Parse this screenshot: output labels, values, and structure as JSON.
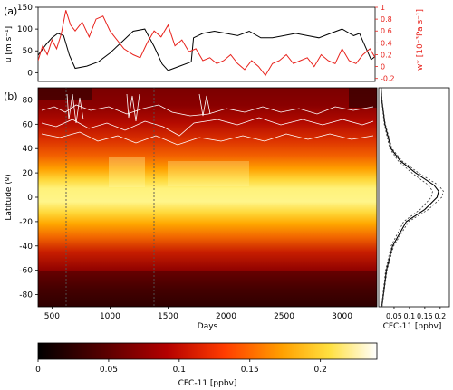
{
  "chart_data": [
    {
      "type": "line",
      "panel_label": "(a)",
      "x_range": [
        380,
        3300
      ],
      "left_axis": {
        "label": "u [m s⁻¹]",
        "ticks": [
          0,
          50,
          100,
          150
        ],
        "ylim": [
          -20,
          150
        ],
        "color": "#000000"
      },
      "right_axis": {
        "label": "w* [10⁻³Pa s⁻¹]",
        "ticks": [
          -0.2,
          0,
          0.2,
          0.4,
          0.6,
          0.8,
          1
        ],
        "tick_labels": [
          "-0.2",
          "0",
          "0.2",
          "0.4",
          "0.6",
          "0.8",
          "1"
        ],
        "ylim": [
          -0.25,
          1.0
        ],
        "color": "#e8221c"
      },
      "series": [
        {
          "color": "#000000",
          "axis": "left",
          "x": [
            380,
            450,
            500,
            550,
            600,
            650,
            700,
            800,
            900,
            1000,
            1100,
            1200,
            1300,
            1380,
            1450,
            1500,
            1600,
            1700,
            1720,
            1800,
            1900,
            2000,
            2100,
            2200,
            2300,
            2400,
            2500,
            2600,
            2700,
            2800,
            2900,
            3000,
            3100,
            3150,
            3200,
            3250,
            3300
          ],
          "values": [
            40,
            65,
            80,
            90,
            85,
            40,
            10,
            15,
            25,
            45,
            70,
            95,
            100,
            60,
            20,
            5,
            15,
            25,
            80,
            90,
            95,
            90,
            85,
            95,
            80,
            80,
            85,
            90,
            85,
            80,
            90,
            100,
            85,
            90,
            60,
            30,
            40
          ]
        },
        {
          "color": "#e8221c",
          "axis": "right",
          "x": [
            380,
            420,
            460,
            500,
            540,
            580,
            620,
            660,
            700,
            760,
            820,
            880,
            940,
            1000,
            1060,
            1120,
            1200,
            1260,
            1320,
            1380,
            1440,
            1500,
            1560,
            1620,
            1680,
            1740,
            1800,
            1860,
            1920,
            1980,
            2040,
            2100,
            2160,
            2220,
            2280,
            2340,
            2400,
            2460,
            2520,
            2580,
            2640,
            2700,
            2760,
            2820,
            2880,
            2940,
            3000,
            3060,
            3120,
            3180,
            3240,
            3300
          ],
          "values": [
            0.1,
            0.35,
            0.2,
            0.45,
            0.3,
            0.55,
            0.95,
            0.7,
            0.6,
            0.75,
            0.5,
            0.8,
            0.85,
            0.6,
            0.45,
            0.3,
            0.2,
            0.15,
            0.4,
            0.6,
            0.5,
            0.7,
            0.35,
            0.45,
            0.25,
            0.3,
            0.1,
            0.15,
            0.05,
            0.1,
            0.2,
            0.05,
            -0.05,
            0.1,
            0.0,
            -0.15,
            0.05,
            0.1,
            0.2,
            0.05,
            0.1,
            0.15,
            0.0,
            0.2,
            0.1,
            0.05,
            0.3,
            0.1,
            0.05,
            0.2,
            0.3,
            0.1
          ]
        }
      ],
      "vlines": [
        620,
        1350
      ]
    },
    {
      "type": "heatmap",
      "panel_label": "(b)",
      "xlabel": "Days",
      "ylabel": "Latitude (º)",
      "xticks": [
        500,
        1000,
        1500,
        2000,
        2500,
        3000
      ],
      "yticks": [
        -80,
        -60,
        -40,
        -20,
        0,
        20,
        40,
        60,
        80
      ],
      "xlim": [
        380,
        3300
      ],
      "ylim": [
        -90,
        90
      ],
      "colorbar": {
        "label": "CFC-11 [ppbv]",
        "ticks": [
          0,
          0.05,
          0.1,
          0.15,
          0.2
        ],
        "tick_labels": [
          "0",
          "0.05",
          "0.1",
          "0.15",
          "0.2"
        ],
        "range": [
          0,
          0.24
        ]
      },
      "latitude_profile": [
        {
          "lat": -90,
          "value": 0.01
        },
        {
          "lat": -80,
          "value": 0.015
        },
        {
          "lat": -60,
          "value": 0.025
        },
        {
          "lat": -40,
          "value": 0.045
        },
        {
          "lat": -20,
          "value": 0.09
        },
        {
          "lat": -10,
          "value": 0.15
        },
        {
          "lat": 0,
          "value": 0.19
        },
        {
          "lat": 5,
          "value": 0.195
        },
        {
          "lat": 10,
          "value": 0.18
        },
        {
          "lat": 20,
          "value": 0.12
        },
        {
          "lat": 30,
          "value": 0.07
        },
        {
          "lat": 40,
          "value": 0.04
        },
        {
          "lat": 50,
          "value": 0.03
        },
        {
          "lat": 60,
          "value": 0.02
        },
        {
          "lat": 70,
          "value": 0.015
        },
        {
          "lat": 80,
          "value": 0.01
        },
        {
          "lat": 90,
          "value": 0.008
        }
      ],
      "profile_panel": {
        "xlabel": "CFC-11 [ppbv]",
        "xticks": [
          0.05,
          0.1,
          0.15,
          0.2
        ],
        "xtick_labels": [
          "0.05",
          "0.1",
          "0.15",
          "0.2"
        ],
        "xlim": [
          0,
          0.23
        ]
      }
    }
  ]
}
